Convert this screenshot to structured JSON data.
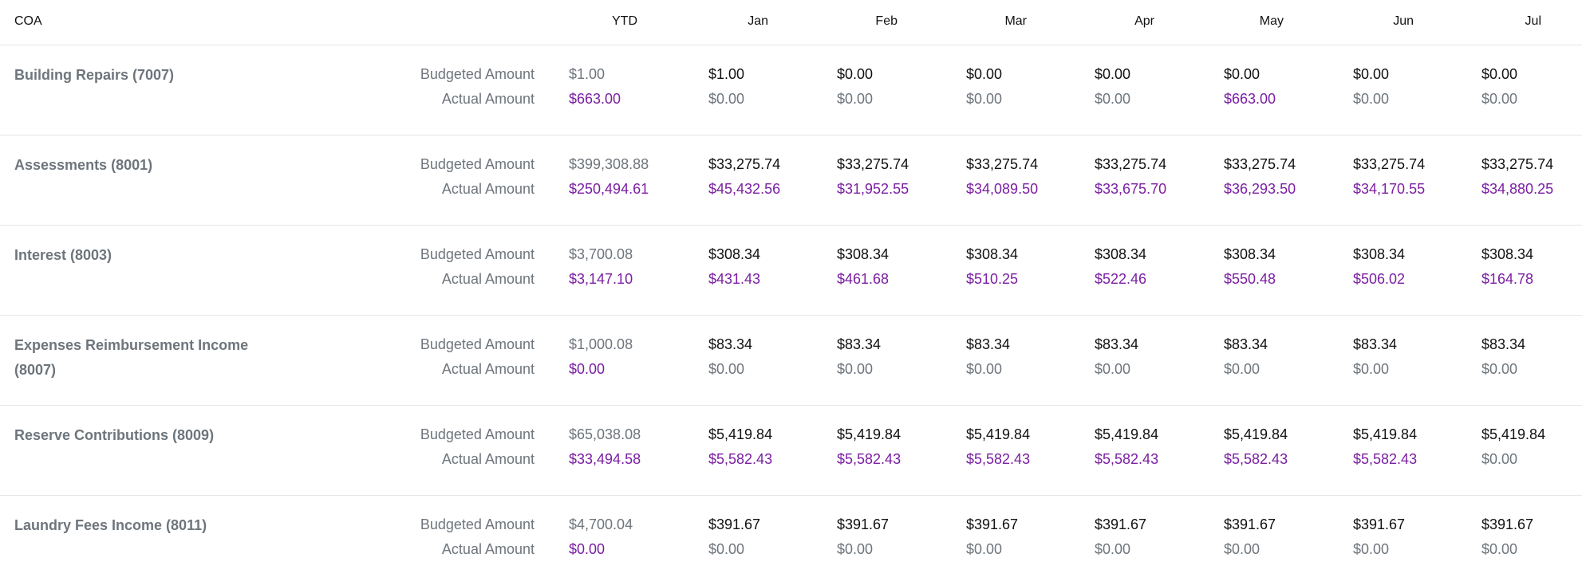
{
  "header": {
    "coa": "COA",
    "ytd": "YTD",
    "months": [
      "Jan",
      "Feb",
      "Mar",
      "Apr",
      "May",
      "Jun",
      "Jul"
    ]
  },
  "labels": {
    "budgeted": "Budgeted Amount",
    "actual": "Actual Amount"
  },
  "colors": {
    "name_gray": "#6e757c",
    "actual_purple": "#7b1fa2",
    "budget_black": "#111111",
    "divider": "#e6e6e6"
  },
  "rows": [
    {
      "name": "Building Repairs (7007)",
      "ytd_budgeted": "$1.00",
      "ytd_actual": "$663.00",
      "budgeted": [
        "$1.00",
        "$0.00",
        "$0.00",
        "$0.00",
        "$0.00",
        "$0.00",
        "$0.00"
      ],
      "actual": [
        "$0.00",
        "$0.00",
        "$0.00",
        "$0.00",
        "$663.00",
        "$0.00",
        "$0.00"
      ]
    },
    {
      "name": "Assessments (8001)",
      "ytd_budgeted": "$399,308.88",
      "ytd_actual": "$250,494.61",
      "budgeted": [
        "$33,275.74",
        "$33,275.74",
        "$33,275.74",
        "$33,275.74",
        "$33,275.74",
        "$33,275.74",
        "$33,275.74"
      ],
      "actual": [
        "$45,432.56",
        "$31,952.55",
        "$34,089.50",
        "$33,675.70",
        "$36,293.50",
        "$34,170.55",
        "$34,880.25"
      ]
    },
    {
      "name": "Interest (8003)",
      "ytd_budgeted": "$3,700.08",
      "ytd_actual": "$3,147.10",
      "budgeted": [
        "$308.34",
        "$308.34",
        "$308.34",
        "$308.34",
        "$308.34",
        "$308.34",
        "$308.34"
      ],
      "actual": [
        "$431.43",
        "$461.68",
        "$510.25",
        "$522.46",
        "$550.48",
        "$506.02",
        "$164.78"
      ]
    },
    {
      "name": "Expenses Reimbursement Income (8007)",
      "ytd_budgeted": "$1,000.08",
      "ytd_actual": "$0.00",
      "budgeted": [
        "$83.34",
        "$83.34",
        "$83.34",
        "$83.34",
        "$83.34",
        "$83.34",
        "$83.34"
      ],
      "actual": [
        "$0.00",
        "$0.00",
        "$0.00",
        "$0.00",
        "$0.00",
        "$0.00",
        "$0.00"
      ]
    },
    {
      "name": "Reserve Contributions (8009)",
      "ytd_budgeted": "$65,038.08",
      "ytd_actual": "$33,494.58",
      "budgeted": [
        "$5,419.84",
        "$5,419.84",
        "$5,419.84",
        "$5,419.84",
        "$5,419.84",
        "$5,419.84",
        "$5,419.84"
      ],
      "actual": [
        "$5,582.43",
        "$5,582.43",
        "$5,582.43",
        "$5,582.43",
        "$5,582.43",
        "$5,582.43",
        "$0.00"
      ]
    },
    {
      "name": "Laundry Fees Income (8011)",
      "ytd_budgeted": "$4,700.04",
      "ytd_actual": "$0.00",
      "budgeted": [
        "$391.67",
        "$391.67",
        "$391.67",
        "$391.67",
        "$391.67",
        "$391.67",
        "$391.67"
      ],
      "actual": [
        "$0.00",
        "$0.00",
        "$0.00",
        "$0.00",
        "$0.00",
        "$0.00",
        "$0.00"
      ]
    }
  ]
}
